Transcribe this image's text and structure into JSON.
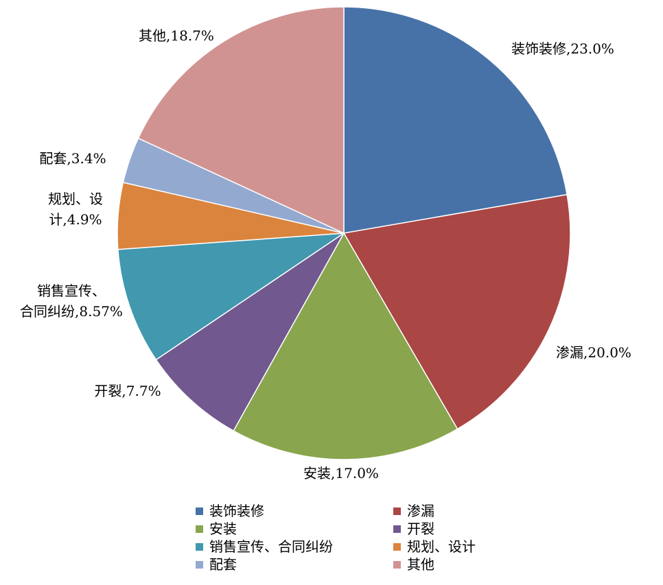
{
  "chart_data": {
    "type": "pie",
    "title": "",
    "slices": [
      {
        "name": "装饰装修",
        "value": 23.0,
        "color": "#4672A8",
        "label": [
          "装饰装修,23.0%"
        ]
      },
      {
        "name": "渗漏",
        "value": 20.0,
        "color": "#AA4644",
        "label": [
          "渗漏,20.0%"
        ]
      },
      {
        "name": "安装",
        "value": 17.0,
        "color": "#89A54E",
        "label": [
          "安装,17.0%"
        ]
      },
      {
        "name": "开裂",
        "value": 7.7,
        "color": "#71588F",
        "label": [
          "开裂,7.7%"
        ]
      },
      {
        "name": "销售宣传、合同纠纷",
        "value": 8.57,
        "color": "#4198AF",
        "label": [
          "销售宣传、",
          "合同纠纷,8.57%"
        ]
      },
      {
        "name": "规划、设计",
        "value": 4.9,
        "color": "#DB843D",
        "label": [
          "规划、设",
          "计,4.9%"
        ]
      },
      {
        "name": "配套",
        "value": 3.4,
        "color": "#93A9D0",
        "label": [
          "配套,3.4%"
        ]
      },
      {
        "name": "其他",
        "value": 18.7,
        "color": "#D19392",
        "label": [
          "其他,18.7%"
        ]
      }
    ],
    "legend": {
      "placement": "bottom",
      "items": [
        "装饰装修",
        "渗漏",
        "安装",
        "开裂",
        "销售宣传、合同纠纷",
        "规划、设计",
        "配套",
        "其他"
      ]
    }
  }
}
